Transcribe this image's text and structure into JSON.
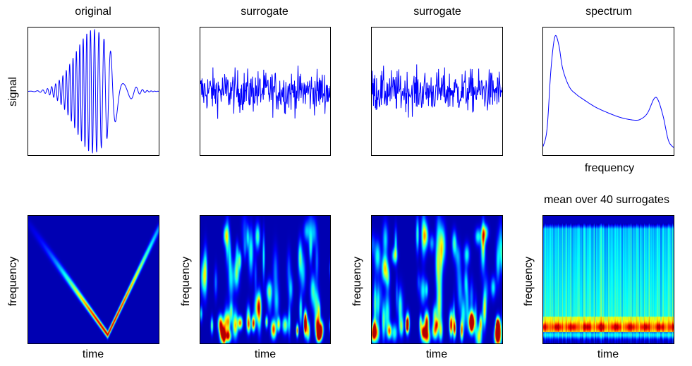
{
  "figure": {
    "titles": [
      "original",
      "surrogate",
      "surrogate",
      "spectrum"
    ],
    "mean_title": "mean over 40 surrogates",
    "signal_ylabel": "signal",
    "spectrum_xlabel": "frequency",
    "tf_ylabel": "frequency",
    "tf_xlabel": "time"
  },
  "chart_data": [
    {
      "type": "line",
      "title": "original",
      "ylabel": "signal",
      "xlabel": "",
      "description_series": "chirp signal with Gaussian envelope, peak amplitude at center",
      "series": [
        {
          "color": "#0000ff",
          "kind": "chirp"
        }
      ]
    },
    {
      "type": "line",
      "title": "surrogate",
      "xlabel": "",
      "ylabel": "",
      "series": [
        {
          "color": "#0000ff",
          "kind": "noise"
        }
      ]
    },
    {
      "type": "line",
      "title": "surrogate",
      "xlabel": "",
      "ylabel": "",
      "series": [
        {
          "color": "#0000ff",
          "kind": "noise"
        }
      ]
    },
    {
      "type": "line",
      "title": "spectrum",
      "xlabel": "frequency",
      "ylabel": "",
      "series": [
        {
          "color": "#0000ff",
          "x": [
            0.0,
            0.03,
            0.06,
            0.09,
            0.12,
            0.15,
            0.2,
            0.25,
            0.3,
            0.4,
            0.5,
            0.6,
            0.7,
            0.75,
            0.8,
            0.85,
            0.88,
            0.92,
            0.96,
            1.0
          ],
          "y": [
            0.05,
            0.2,
            0.7,
            0.97,
            0.9,
            0.7,
            0.55,
            0.49,
            0.45,
            0.38,
            0.33,
            0.29,
            0.27,
            0.28,
            0.33,
            0.45,
            0.44,
            0.3,
            0.1,
            0.04
          ]
        }
      ]
    },
    {
      "type": "heatmap",
      "title": "",
      "xlabel": "time",
      "ylabel": "frequency",
      "pattern": "V-shaped ridge"
    },
    {
      "type": "heatmap",
      "title": "",
      "xlabel": "time",
      "ylabel": "frequency",
      "pattern": "scattered blobs"
    },
    {
      "type": "heatmap",
      "title": "",
      "xlabel": "time",
      "ylabel": "frequency",
      "pattern": "scattered blobs"
    },
    {
      "type": "heatmap",
      "title": "mean over 40 surrogates",
      "xlabel": "time",
      "ylabel": "frequency",
      "pattern": "strong low-frequency band"
    }
  ]
}
